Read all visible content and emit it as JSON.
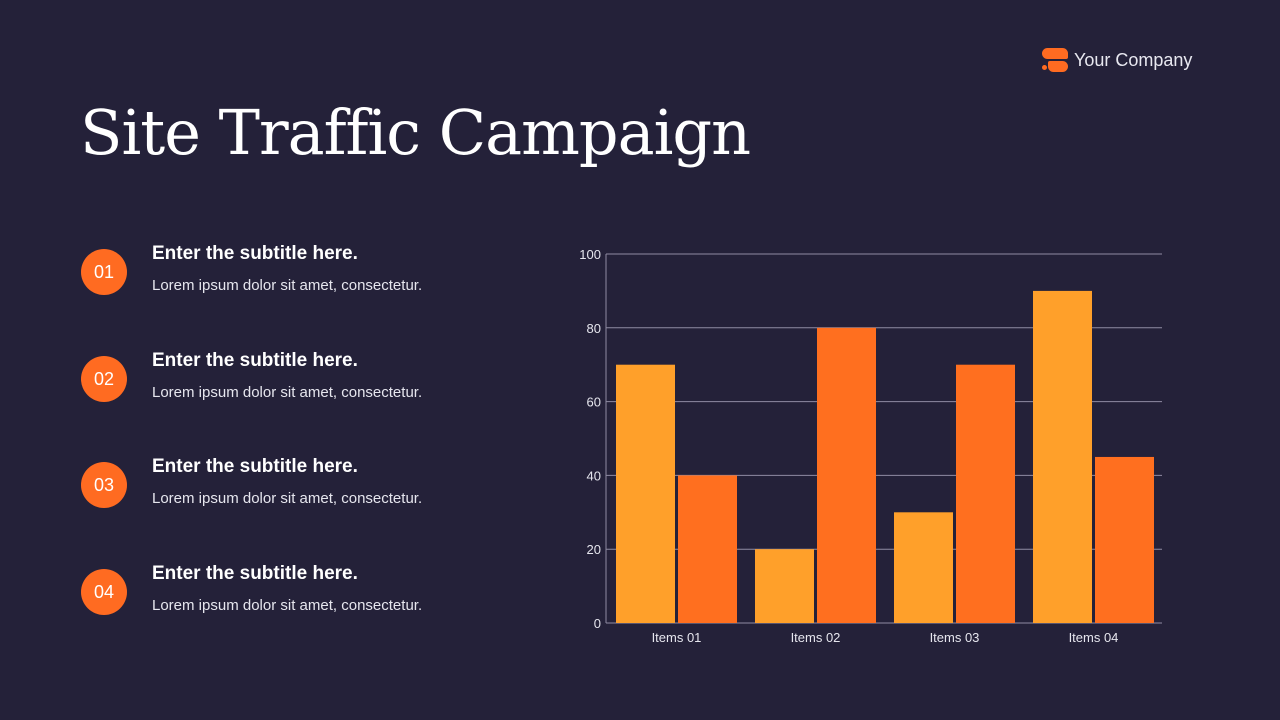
{
  "logo": {
    "name": "Your Company",
    "icon": "company-logo-icon",
    "color": "#ff6b21"
  },
  "title": "Site Traffic Campaign",
  "items": [
    {
      "number": "01",
      "subtitle": "Enter the subtitle here.",
      "text": "Lorem ipsum dolor sit amet, consectetur."
    },
    {
      "number": "02",
      "subtitle": "Enter the subtitle here.",
      "text": "Lorem ipsum dolor sit amet, consectetur."
    },
    {
      "number": "03",
      "subtitle": "Enter the subtitle here.",
      "text": "Lorem ipsum dolor sit amet, consectetur."
    },
    {
      "number": "04",
      "subtitle": "Enter the subtitle here.",
      "text": "Lorem ipsum dolor sit amet, consectetur."
    }
  ],
  "chart_data": {
    "type": "bar",
    "categories": [
      "Items 01",
      "Items 02",
      "Items 03",
      "Items 04"
    ],
    "series": [
      {
        "values": [
          70,
          20,
          30,
          90
        ],
        "color": "#ffa02a"
      },
      {
        "values": [
          40,
          80,
          70,
          45
        ],
        "color": "#ff6f1f"
      }
    ],
    "ylim": [
      0,
      100
    ],
    "yticks": [
      "0",
      "20",
      "40",
      "60",
      "80",
      "100"
    ],
    "grid": true,
    "legend": "none"
  }
}
